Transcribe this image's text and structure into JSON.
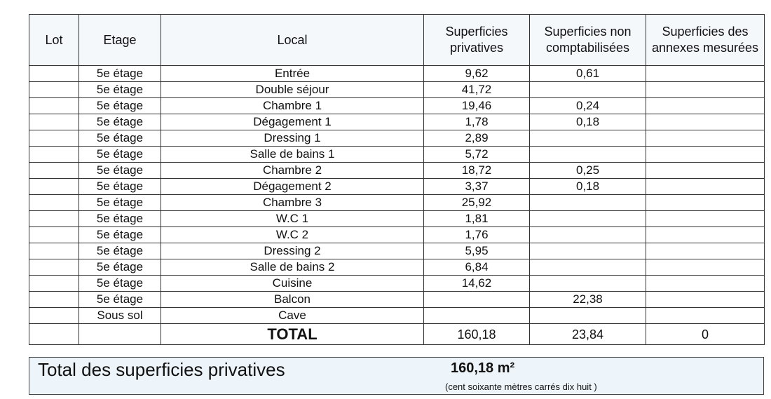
{
  "table": {
    "headers": [
      "Lot",
      "Etage",
      "Local",
      "Superficies privatives",
      "Superficies non comptabilisées",
      "Superficies des annexes mesurées"
    ],
    "rows": [
      {
        "etage": "5e étage",
        "local": "Entrée",
        "privatives": "9,62",
        "non_comptabilisees": "0,61"
      },
      {
        "etage": "5e étage",
        "local": "Double séjour",
        "privatives": "41,72"
      },
      {
        "etage": "5e étage",
        "local": "Chambre 1",
        "privatives": "19,46",
        "non_comptabilisees": "0,24"
      },
      {
        "etage": "5e étage",
        "local": "Dégagement 1",
        "privatives": "1,78",
        "non_comptabilisees": "0,18"
      },
      {
        "etage": "5e étage",
        "local": "Dressing 1",
        "privatives": "2,89"
      },
      {
        "etage": "5e étage",
        "local": "Salle de bains 1",
        "privatives": "5,72"
      },
      {
        "etage": "5e étage",
        "local": "Chambre 2",
        "privatives": "18,72",
        "non_comptabilisees": "0,25"
      },
      {
        "etage": "5e étage",
        "local": "Dégagement 2",
        "privatives": "3,37",
        "non_comptabilisees": "0,18"
      },
      {
        "etage": "5e étage",
        "local": "Chambre 3",
        "privatives": "25,92"
      },
      {
        "etage": "5e étage",
        "local": "W.C 1",
        "privatives": "1,81"
      },
      {
        "etage": "5e étage",
        "local": "W.C 2",
        "privatives": "1,76"
      },
      {
        "etage": "5e étage",
        "local": "Dressing 2",
        "privatives": "5,95"
      },
      {
        "etage": "5e étage",
        "local": "Salle de bains 2",
        "privatives": "6,84"
      },
      {
        "etage": "5e étage",
        "local": "Cuisine",
        "privatives": "14,62"
      },
      {
        "etage": "5e étage",
        "local": "Balcon",
        "non_comptabilisees": "22,38"
      },
      {
        "etage": "Sous sol",
        "local": "Cave"
      }
    ],
    "total": {
      "label": "TOTAL",
      "privatives": "160,18",
      "non_comptabilisees": "23,84",
      "annexes": "0"
    }
  },
  "summary": {
    "label": "Total des superficies privatives",
    "value": "160,18 m²",
    "words": "(cent soixante mètres carrés dix huit  )"
  }
}
